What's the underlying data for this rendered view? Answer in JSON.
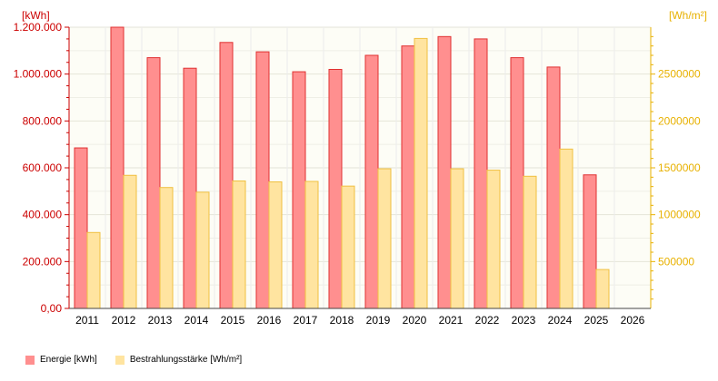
{
  "chart_data": {
    "type": "bar",
    "categories": [
      "2011",
      "2012",
      "2013",
      "2014",
      "2015",
      "2016",
      "2017",
      "2018",
      "2019",
      "2020",
      "2021",
      "2022",
      "2023",
      "2024",
      "2025",
      "2026"
    ],
    "series": [
      {
        "name": "Energie [kWh]",
        "axis": "left",
        "color": "#ff8f8f",
        "stroke": "#e03030",
        "values": [
          685000,
          1200000,
          1070000,
          1025000,
          1135000,
          1095000,
          1010000,
          1020000,
          1080000,
          1120000,
          1160000,
          1150000,
          1070000,
          1030000,
          570000,
          null
        ]
      },
      {
        "name": "Bestrahlungsstärke [Wh/m²]",
        "axis": "right",
        "color": "#ffe4a0",
        "stroke": "#f0c040",
        "values": [
          810000,
          1420000,
          1290000,
          1240000,
          1360000,
          1350000,
          1355000,
          1305000,
          1490000,
          2880000,
          1490000,
          1475000,
          1410000,
          1700000,
          415000,
          null
        ]
      }
    ],
    "left_axis": {
      "unit": "[kWh]",
      "ylim": [
        0,
        1200000
      ],
      "ticks": [
        0,
        200000,
        400000,
        600000,
        800000,
        1000000,
        1200000
      ],
      "tick_labels": [
        "0,00",
        "200.000",
        "400.000",
        "600.000",
        "800.000",
        "1.000.000",
        "1.200.000"
      ]
    },
    "right_axis": {
      "unit": "[Wh/m²]",
      "ylim": [
        0,
        3000000
      ],
      "ticks": [
        500000,
        1000000,
        1500000,
        2000000,
        2500000
      ],
      "tick_labels": [
        "500000",
        "1000000",
        "1500000",
        "2000000",
        "2500000"
      ]
    },
    "grid": true,
    "legend_placement": "bottom-left"
  }
}
